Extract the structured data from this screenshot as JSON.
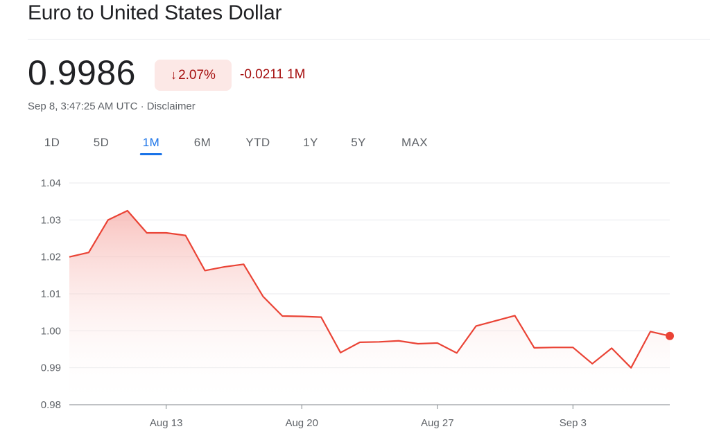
{
  "header": {
    "title": "Euro to United States Dollar",
    "price": "0.9986",
    "change_percent": "2.07%",
    "change_abs": "-0.0211",
    "change_period": "1M",
    "timestamp": "Sep 8, 3:47:25 AM UTC",
    "separator": "·",
    "disclaimer": "Disclaimer"
  },
  "tabs": [
    {
      "label": "1D",
      "active": false
    },
    {
      "label": "5D",
      "active": false
    },
    {
      "label": "1M",
      "active": true
    },
    {
      "label": "6M",
      "active": false
    },
    {
      "label": "YTD",
      "active": false
    },
    {
      "label": "1Y",
      "active": false
    },
    {
      "label": "5Y",
      "active": false
    },
    {
      "label": "MAX",
      "active": false
    }
  ],
  "colors": {
    "line": "#ea4335",
    "fill_top": "#f6aea9",
    "badge_bg": "#fce8e6",
    "negative_text": "#a50e0e",
    "active_tab": "#1a73e8",
    "grid": "#e8eaed",
    "axis": "#5f6368"
  },
  "chart_data": {
    "type": "area",
    "x": [
      "Aug 8",
      "Aug 9",
      "Aug 10",
      "Aug 11",
      "Aug 12",
      "Aug 13",
      "Aug 14",
      "Aug 15",
      "Aug 16",
      "Aug 17",
      "Aug 18",
      "Aug 19",
      "Aug 20",
      "Aug 21",
      "Aug 22",
      "Aug 23",
      "Aug 24",
      "Aug 25",
      "Aug 26",
      "Aug 27",
      "Aug 28",
      "Aug 29",
      "Aug 30",
      "Aug 31",
      "Sep 1",
      "Sep 2",
      "Sep 3",
      "Sep 4",
      "Sep 5",
      "Sep 6",
      "Sep 7",
      "Sep 8"
    ],
    "series": [
      {
        "values": [
          1.02,
          1.0212,
          1.03,
          1.0325,
          1.0265,
          1.0265,
          1.0258,
          1.0163,
          1.0173,
          1.018,
          1.0093,
          1.004,
          1.0039,
          1.0037,
          0.9941,
          0.9969,
          0.997,
          0.9973,
          0.9965,
          0.9967,
          0.994,
          1.0013,
          1.0027,
          1.0041,
          0.9954,
          0.9955,
          0.9955,
          0.9911,
          0.9953,
          0.99,
          0.9998,
          0.9986
        ]
      }
    ],
    "yticks": [
      "1.04",
      "1.03",
      "1.02",
      "1.01",
      "1.00",
      "0.99",
      "0.98"
    ],
    "ylim": [
      0.98,
      1.04
    ],
    "xticks": [
      {
        "label": "Aug 13",
        "x": "Aug 13"
      },
      {
        "label": "Aug 20",
        "x": "Aug 20"
      },
      {
        "label": "Aug 27",
        "x": "Aug 27"
      },
      {
        "label": "Sep 3",
        "x": "Sep 3"
      }
    ],
    "grid": true,
    "title": "",
    "xlabel": "",
    "ylabel": ""
  }
}
